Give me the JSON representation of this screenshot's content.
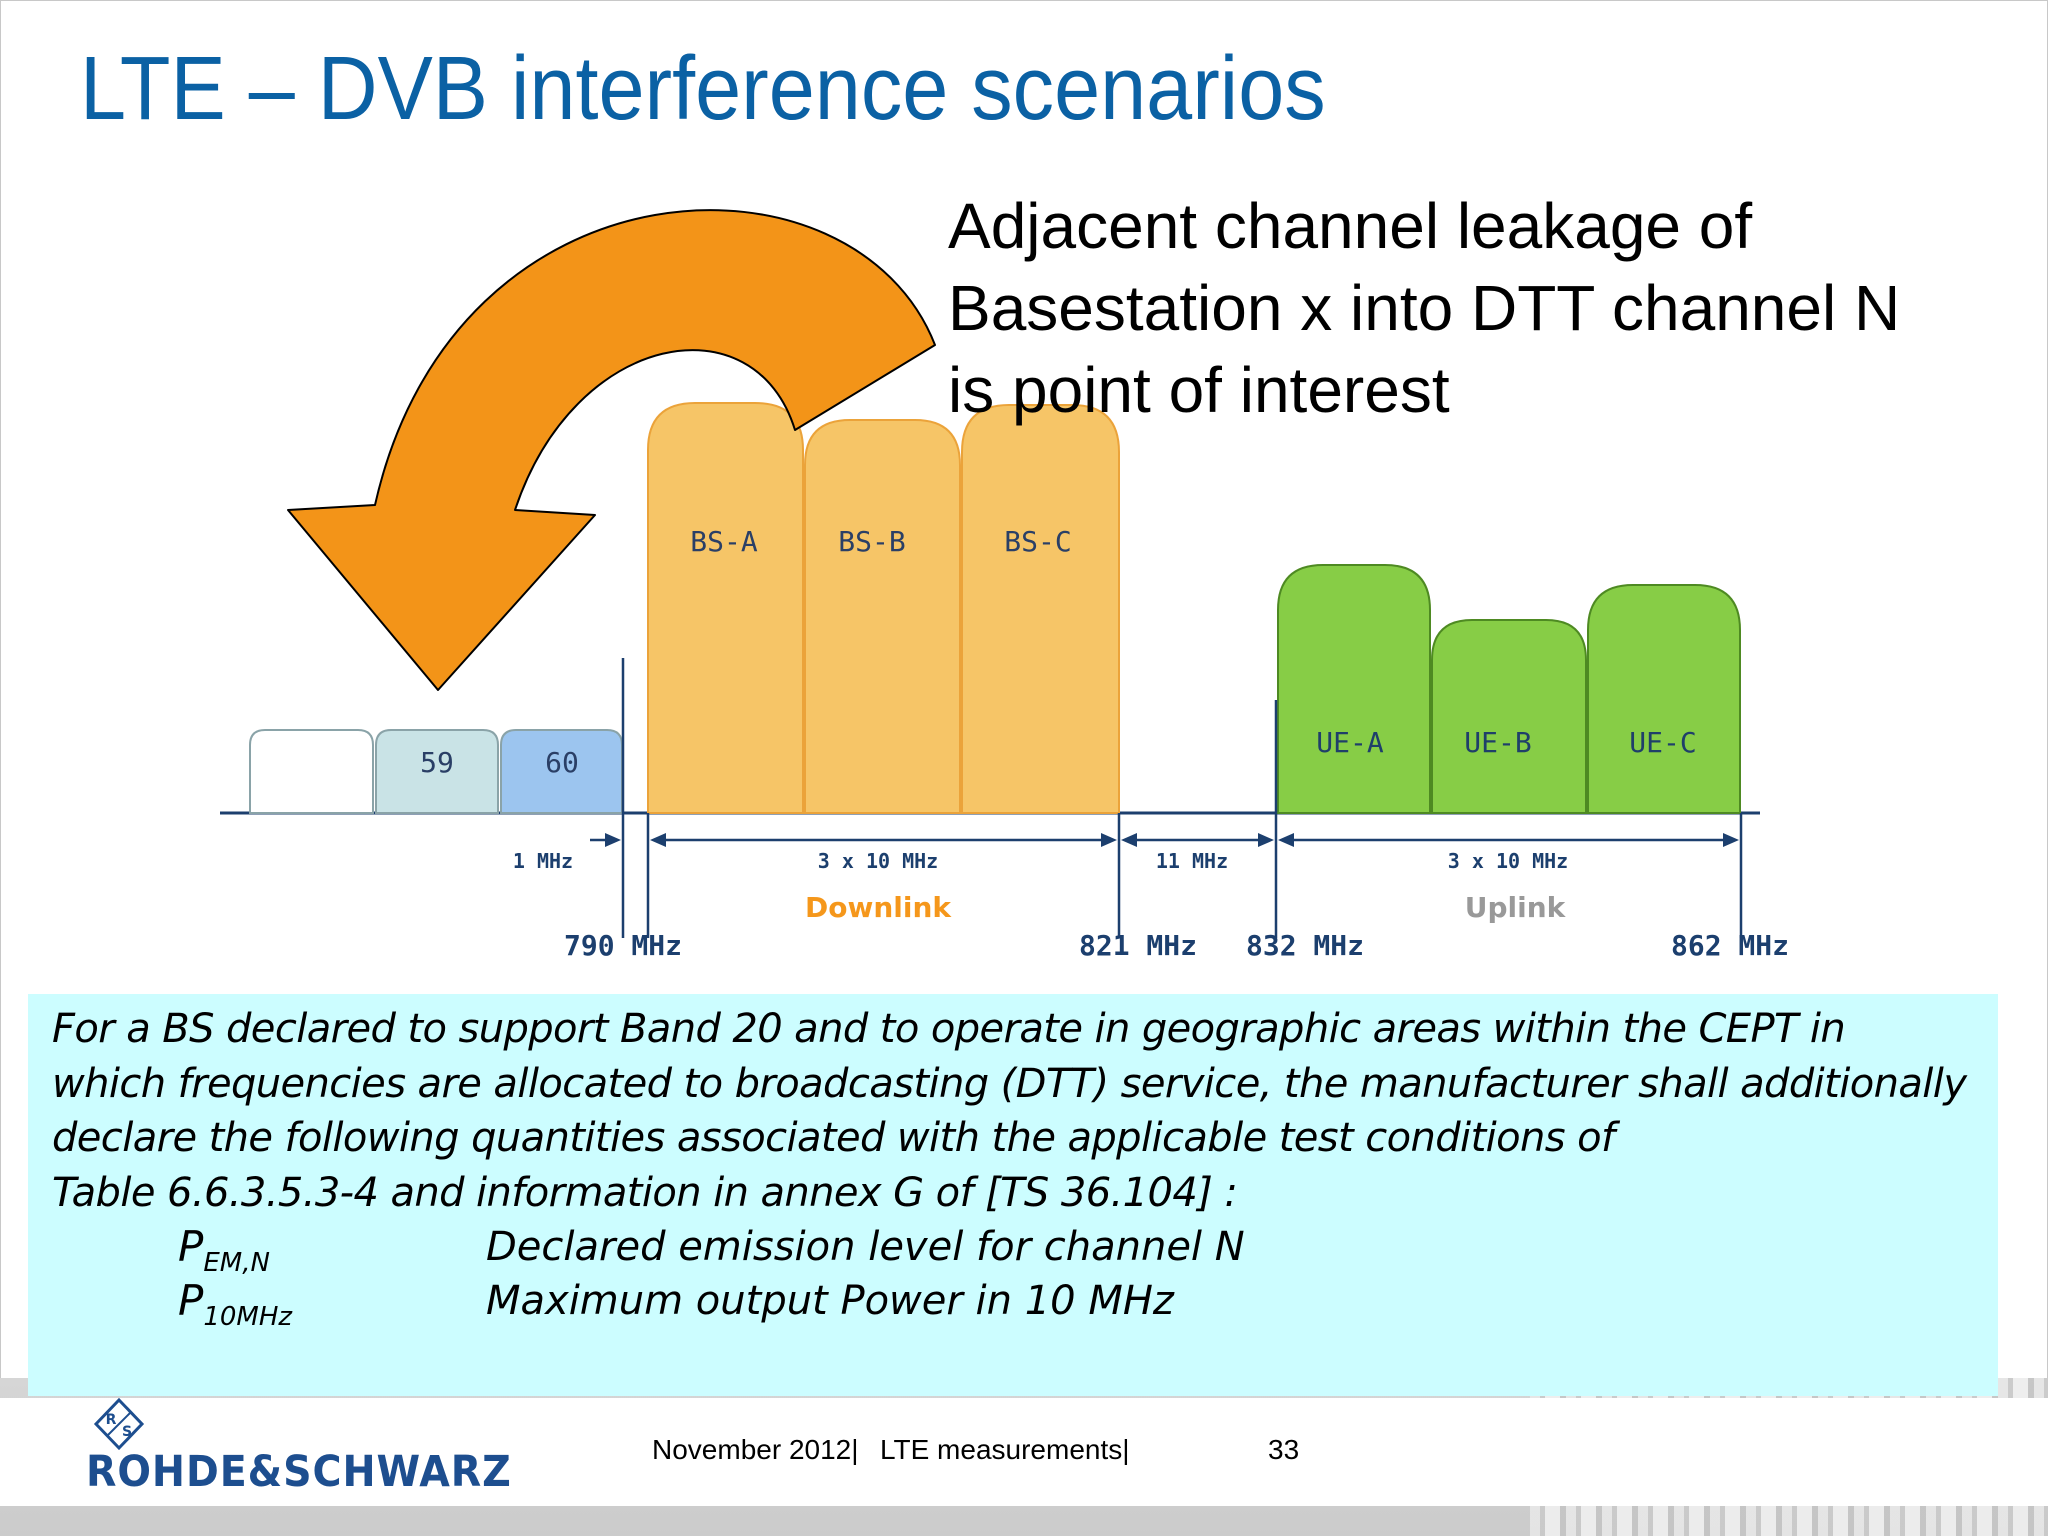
{
  "title": "LTE – DVB interference scenarios",
  "callout": {
    "lines": [
      "Adjacent channel leakage of",
      "Basestation x into DTT channel N",
      "is point of interest"
    ]
  },
  "diagram": {
    "dtt_channels": [
      {
        "label": "",
        "color": "#ffffff"
      },
      {
        "label": "59",
        "color": "#c9e3e6"
      },
      {
        "label": "60",
        "color": "#9cc5ef"
      }
    ],
    "downlink_blocks": [
      "BS-A",
      "BS-B",
      "BS-C"
    ],
    "uplink_blocks": [
      "UE-A",
      "UE-B",
      "UE-C"
    ],
    "gaps": {
      "guard": "1 MHz",
      "downlink_width": "3 x 10 MHz",
      "duplex_gap": "11 MHz",
      "uplink_width": "3 x 10 MHz"
    },
    "band_labels": {
      "downlink": "Downlink",
      "uplink": "Uplink"
    },
    "frequencies": [
      "790 MHz",
      "821 MHz",
      "832 MHz",
      "862 MHz"
    ],
    "colors": {
      "arrow": "#f39418",
      "downlink": "#f6c567",
      "uplink": "#87cd46",
      "axis": "#1c3f6e",
      "downlink_text": "#f5971b",
      "uplink_text": "#999999"
    }
  },
  "note": {
    "lines": [
      "For a BS declared to support Band 20 and to operate in geographic areas within the CEPT in",
      "which frequencies are allocated to broadcasting (DTT) service, the manufacturer shall additionally",
      "declare the following quantities associated with the applicable test conditions of",
      "Table 6.6.3.5.3-4 and information in annex G of [TS 36.104] :"
    ],
    "declarations": [
      {
        "symbol": "P",
        "subscript": "EM,N",
        "description": "Declared emission level for channel N"
      },
      {
        "symbol": "P",
        "subscript": "10MHz",
        "description": "Maximum output Power in 10 MHz"
      }
    ]
  },
  "footer": {
    "brand": "ROHDE&SCHWARZ",
    "logo_text": "R&S",
    "date": "November 2012",
    "topic": "LTE measurements",
    "page": "33"
  }
}
